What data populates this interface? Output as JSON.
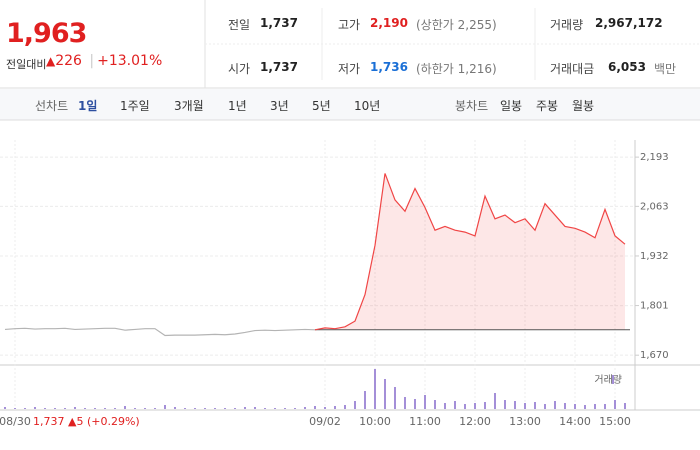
{
  "header": {
    "price": "1,963",
    "change_label": "전일대비",
    "change": "226",
    "change_pct": "+13.01%",
    "stats": [
      {
        "label": "전일",
        "value": "1,737"
      },
      {
        "label": "고가",
        "value": "2,190",
        "note": "(상한가 2,255)",
        "color": "#e02020"
      },
      {
        "label": "거래량",
        "value": "2,967,172"
      },
      {
        "label": "시가",
        "value": "1,737"
      },
      {
        "label": "저가",
        "value": "1,736",
        "note": "(하한가 1,216)",
        "color": "#1a6fd6"
      },
      {
        "label": "거래대금",
        "value": "6,053",
        "note": "백만"
      }
    ]
  },
  "tabs": {
    "line_label": "선차트",
    "line": [
      "1일",
      "1주일",
      "3개월",
      "1년",
      "3년",
      "5년",
      "10년"
    ],
    "selected": 0,
    "candle_label": "봉차트",
    "candle": [
      "일봉",
      "주봉",
      "월봉"
    ]
  },
  "chart_data": {
    "type": "line",
    "annotation": "1,737 ▲5 (+0.29%)",
    "base_value": 1737,
    "categories": [
      null,
      "08/30",
      null,
      null,
      null,
      null,
      null,
      null,
      null,
      null,
      null,
      null,
      null,
      null,
      null,
      null,
      null,
      null,
      null,
      null,
      null,
      null,
      null,
      null,
      null,
      null,
      null,
      null,
      null,
      null,
      null,
      null,
      "09/02",
      null,
      null,
      null,
      null,
      "10:00",
      null,
      null,
      null,
      null,
      "11:00",
      null,
      null,
      null,
      null,
      "12:00",
      null,
      null,
      null,
      null,
      "13:00",
      null,
      null,
      null,
      null,
      "14:00",
      null,
      null,
      null,
      "15:00",
      null
    ],
    "series": [
      {
        "color": "#b4b4b4",
        "values": [
          1738,
          1740,
          1741,
          1739,
          1740,
          1740,
          1741,
          1738,
          1739,
          1740,
          1741,
          1741,
          1736,
          1738,
          1740,
          1740,
          1722,
          1723,
          1723,
          1723,
          1724,
          1725,
          1724,
          1726,
          1730,
          1735,
          1736,
          1735,
          1736,
          1737,
          1738,
          1737,
          null,
          null,
          null,
          null,
          null,
          null,
          null,
          null,
          null,
          null,
          null,
          null,
          null,
          null,
          null,
          null,
          null,
          null,
          null,
          null,
          null,
          null,
          null,
          null,
          null,
          null,
          null,
          null,
          null,
          null,
          null
        ]
      },
      {
        "color": "#f04646",
        "values": [
          null,
          null,
          null,
          null,
          null,
          null,
          null,
          null,
          null,
          null,
          null,
          null,
          null,
          null,
          null,
          null,
          null,
          null,
          null,
          null,
          null,
          null,
          null,
          null,
          null,
          null,
          null,
          null,
          null,
          null,
          null,
          1737,
          1742,
          1740,
          1745,
          1760,
          1830,
          1960,
          2150,
          2080,
          2050,
          2110,
          2060,
          2000,
          2010,
          2000,
          1995,
          1985,
          2090,
          2030,
          2040,
          2020,
          2030,
          2000,
          2070,
          2040,
          2010,
          2005,
          1995,
          1980,
          2055,
          1985,
          1963
        ]
      }
    ],
    "volume": {
      "name": "거래량",
      "color": "#a48fd8",
      "values": [
        2,
        1,
        1,
        2,
        1,
        1,
        1,
        2,
        1,
        1,
        1,
        1,
        3,
        1,
        1,
        1,
        4,
        2,
        1,
        1,
        1,
        1,
        1,
        1,
        2,
        2,
        1,
        1,
        1,
        1,
        2,
        3,
        2,
        3,
        4,
        8,
        18,
        40,
        30,
        22,
        12,
        10,
        14,
        9,
        6,
        8,
        5,
        6,
        7,
        16,
        9,
        8,
        6,
        7,
        5,
        8,
        6,
        5,
        4,
        5,
        5,
        9,
        6
      ]
    },
    "ylim": [
      1652,
      2225
    ],
    "yticks": [
      {
        "value": 1670,
        "label": "1,670"
      },
      {
        "value": 1801,
        "label": "1,801"
      },
      {
        "value": 1932,
        "label": "1,932"
      },
      {
        "value": 2063,
        "label": "2,063"
      },
      {
        "value": 2193,
        "label": "2,193"
      }
    ],
    "grid": true
  }
}
